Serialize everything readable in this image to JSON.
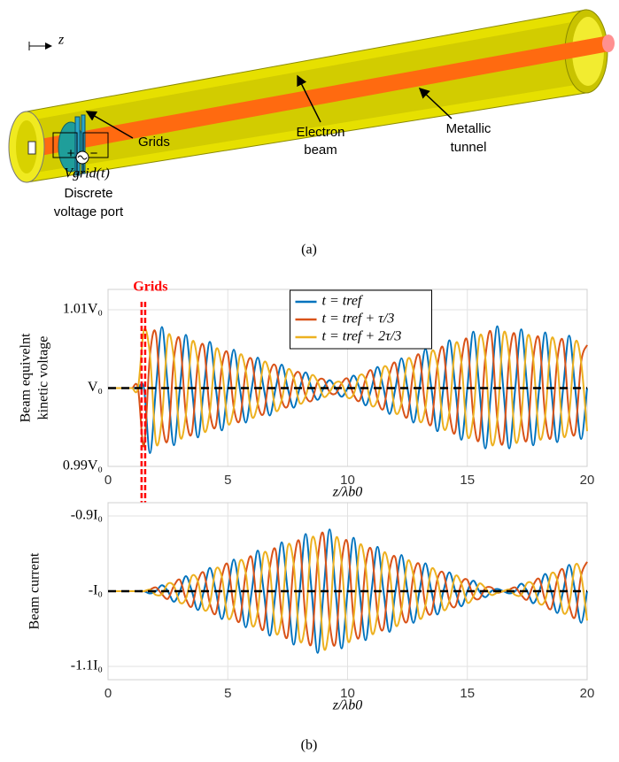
{
  "diagram": {
    "axis_label": "z",
    "grids": "Grids",
    "beam": [
      "Electron",
      "beam"
    ],
    "tunnel": [
      "Metallic",
      "tunnel"
    ],
    "polarity": [
      "+",
      "−"
    ],
    "voltage": "Vgrid(t)",
    "port": [
      "Discrete",
      "voltage port"
    ],
    "caption": "(a)"
  },
  "caption_b": "(b)",
  "chart_data": [
    {
      "type": "line",
      "ylabel": [
        "Beam equivelnt",
        "kinetic voltage"
      ],
      "xlabel": "z/λb0",
      "annotation": "Grids",
      "xlim": [
        0,
        20
      ],
      "xticks": [
        0,
        5,
        10,
        15,
        20
      ],
      "ylim": [
        0.99,
        1.0126
      ],
      "yticks": [
        {
          "value": 1.01,
          "label": "1.01V₀"
        },
        {
          "value": 1,
          "label": "V₀"
        },
        {
          "value": 0.99,
          "label": "0.99V₀"
        }
      ],
      "grid": true,
      "legend": "top",
      "hline": 1,
      "markers_x": [
        1.4,
        1.55
      ],
      "marker_color": "#ff0000",
      "x": [
        0,
        0.25,
        0.5,
        0.75,
        1,
        1.25,
        1.5,
        1.75,
        2,
        2.25,
        2.5,
        2.75,
        3,
        3.25,
        3.5,
        3.75,
        4,
        4.25,
        4.5,
        4.75,
        5,
        5.25,
        5.5,
        5.75,
        6,
        6.25,
        6.5,
        6.75,
        7,
        7.25,
        7.5,
        7.75,
        8,
        8.25,
        8.5,
        8.75,
        9,
        9.25,
        9.5,
        9.75,
        10,
        10.25,
        10.5,
        10.75,
        11,
        11.25,
        11.5,
        11.75,
        12,
        12.25,
        12.5,
        12.75,
        13,
        13.25,
        13.5,
        13.75,
        14,
        14.25,
        14.5,
        14.75,
        15,
        15.25,
        15.5,
        15.75,
        16,
        16.25,
        16.5,
        16.75,
        17,
        17.25,
        17.5,
        17.75,
        18,
        18.25,
        18.5,
        18.75,
        19,
        19.25,
        19.5,
        19.75,
        20
      ],
      "series": [
        {
          "name": "t = tref",
          "color": "#0072bd",
          "values": [
            1,
            1,
            1,
            1,
            1,
            1,
            1,
            0.9917,
            1,
            1.0078,
            1,
            0.9927,
            1,
            1.0068,
            1,
            0.9937,
            1,
            1.0059,
            1,
            0.9946,
            1,
            1.0049,
            1,
            0.9956,
            1,
            1.0039,
            1,
            0.9965,
            1,
            1.003,
            1,
            0.9975,
            1,
            1.002,
            1,
            0.9985,
            1,
            1.001,
            1,
            0.9989,
            1,
            1.0016,
            1,
            0.9978,
            1,
            1.0027,
            1,
            0.9967,
            1,
            1.0038,
            1,
            0.9956,
            1,
            1.005,
            1,
            0.9945,
            1,
            1.0061,
            1,
            0.9934,
            1,
            1.0072,
            1,
            0.9923,
            1,
            1.0079,
            1,
            0.9923,
            1,
            1.0075,
            1,
            0.9927,
            1,
            1.0071,
            1,
            0.9931,
            1,
            1.0067,
            1,
            0.9935,
            1
          ]
        },
        {
          "name": "t = tref + τ/3",
          "color": "#d95319",
          "values": [
            1,
            1,
            1,
            1,
            1,
            1,
            0.9926,
            1.0042,
            1.0069,
            0.9961,
            0.9935,
            1.0037,
            1.0061,
            0.9966,
            0.9943,
            1.0032,
            1.0053,
            0.997,
            0.9952,
            1.0027,
            1.0044,
            0.9975,
            0.9959,
            1.0022,
            1.0036,
            0.998,
            0.9968,
            1.0018,
            1.0028,
            0.9985,
            0.9977,
            1.0013,
            1.0019,
            0.999,
            0.9984,
            1.0008,
            1.0011,
            0.9995,
            0.9993,
            1.0006,
            1.0012,
            0.9992,
            0.9984,
            1.0011,
            1.0022,
            0.9986,
            0.9974,
            1.0017,
            1.0031,
            0.9981,
            0.9964,
            1.0022,
            1.0041,
            0.9975,
            0.9955,
            1.0028,
            1.005,
            0.9969,
            0.9945,
            1.0033,
            1.006,
            0.9964,
            0.9936,
            1.0039,
            1.0069,
            0.996,
            0.9932,
            1.0039,
            1.0066,
            0.9962,
            0.9936,
            1.0037,
            1.0062,
            0.9964,
            0.9939,
            1.0035,
            1.0059,
            0.9966,
            0.9943,
            1.0033,
            1.0055
          ]
        },
        {
          "name": "t = tref + 2τ/3",
          "color": "#edb120",
          "values": [
            1,
            1,
            1,
            1,
            1,
            1,
            1.0074,
            1.0042,
            0.9931,
            0.9961,
            1.0065,
            1.0037,
            0.9939,
            0.9966,
            1.0057,
            1.0032,
            0.9947,
            0.997,
            1.0048,
            1.0027,
            0.9956,
            0.9975,
            1.0041,
            1.0022,
            0.9964,
            0.998,
            1.0032,
            1.0018,
            0.9972,
            0.9985,
            1.0023,
            1.0013,
            0.9981,
            0.999,
            1.0016,
            1.0008,
            0.9989,
            0.9995,
            1.0007,
            1.0006,
            0.9988,
            0.9992,
            1.0016,
            1.0011,
            0.9978,
            0.9986,
            1.0026,
            1.0017,
            0.9969,
            0.9981,
            1.0036,
            1.0022,
            0.9959,
            0.9975,
            1.0045,
            1.0028,
            0.995,
            0.9969,
            1.0055,
            1.0033,
            0.994,
            0.9964,
            1.0064,
            1.0039,
            0.9931,
            0.996,
            1.0068,
            1.0039,
            0.9934,
            0.9962,
            1.0064,
            1.0037,
            0.9938,
            0.9964,
            1.0061,
            1.0035,
            0.9941,
            0.9966,
            1.0057,
            1.0033,
            0.9945
          ]
        }
      ]
    },
    {
      "type": "line",
      "ylabel": [
        "Beam current"
      ],
      "xlabel": "z/λb0",
      "xlim": [
        0,
        20
      ],
      "xticks": [
        0,
        5,
        10,
        15,
        20
      ],
      "ylim": [
        -1.1176,
        -0.8824
      ],
      "yticks": [
        {
          "value": -0.9,
          "label": "-0.9I₀"
        },
        {
          "value": -1,
          "label": "-I₀"
        },
        {
          "value": -1.1,
          "label": "-1.1I₀"
        }
      ],
      "grid": true,
      "hline": -1,
      "x": [
        0,
        0.25,
        0.5,
        0.75,
        1,
        1.25,
        1.5,
        1.75,
        2,
        2.25,
        2.5,
        2.75,
        3,
        3.25,
        3.5,
        3.75,
        4,
        4.25,
        4.5,
        4.75,
        5,
        5.25,
        5.5,
        5.75,
        6,
        6.25,
        6.5,
        6.75,
        7,
        7.25,
        7.5,
        7.75,
        8,
        8.25,
        8.5,
        8.75,
        9,
        9.25,
        9.5,
        9.75,
        10,
        10.25,
        10.5,
        10.75,
        11,
        11.25,
        11.5,
        11.75,
        12,
        12.25,
        12.5,
        12.75,
        13,
        13.25,
        13.5,
        13.75,
        14,
        14.25,
        14.5,
        14.75,
        15,
        15.25,
        15.5,
        15.75,
        16,
        16.25,
        16.5,
        16.75,
        17,
        17.25,
        17.5,
        17.75,
        18,
        18.25,
        18.5,
        18.75,
        19,
        19.25,
        19.5,
        19.75,
        20
      ],
      "series": [
        {
          "name": "t = tref",
          "color": "#0072bd",
          "values": [
            -1,
            -1,
            -1,
            -1,
            -1,
            -1,
            -1,
            -1.003,
            -1,
            -0.992,
            -1,
            -1.014,
            -1,
            -0.98,
            -1,
            -1.025,
            -1,
            -0.969,
            -1,
            -1.037,
            -1,
            -0.958,
            -1,
            -1.048,
            -1,
            -0.946,
            -1,
            -1.059,
            -1,
            -0.935,
            -1,
            -1.071,
            -1,
            -0.924,
            -1,
            -1.082,
            -1,
            -0.918,
            -1,
            -1.076,
            -1,
            -0.929,
            -1,
            -1.065,
            -1,
            -0.941,
            -1,
            -1.054,
            -1,
            -0.952,
            -1,
            -1.042,
            -1,
            -0.963,
            -1,
            -1.031,
            -1,
            -0.975,
            -1,
            -1.02,
            -1,
            -0.986,
            -1,
            -1.008,
            -1,
            -0.997,
            -1,
            -1.003,
            -1,
            -0.99,
            -1,
            -1.016,
            -1,
            -0.977,
            -1,
            -1.029,
            -1,
            -0.965,
            -1,
            -1.042,
            -1
          ]
        },
        {
          "name": "t = tref + τ/3",
          "color": "#d95319",
          "values": [
            -1,
            -1,
            -1,
            -1,
            -1,
            -1,
            -1,
            -0.998,
            -0.995,
            -1.004,
            -1.01,
            -0.993,
            -0.985,
            -1.01,
            -1.02,
            -0.987,
            -0.976,
            -1.016,
            -1.029,
            -0.981,
            -0.965,
            -1.021,
            -1.039,
            -0.976,
            -0.956,
            -1.027,
            -1.049,
            -0.97,
            -0.946,
            -1.033,
            -1.059,
            -0.964,
            -0.936,
            -1.038,
            -1.068,
            -0.959,
            -0.926,
            -1.041,
            -1.068,
            -0.962,
            -0.936,
            -1.036,
            -1.059,
            -0.967,
            -0.946,
            -1.03,
            -1.049,
            -0.973,
            -0.956,
            -1.024,
            -1.039,
            -0.979,
            -0.965,
            -1.019,
            -1.029,
            -0.984,
            -0.976,
            -1.013,
            -1.02,
            -0.99,
            -0.985,
            -1.007,
            -1.01,
            -0.996,
            -0.995,
            -1.002,
            -1,
            -0.998,
            -0.995,
            -1.005,
            -1.011,
            -0.992,
            -0.984,
            -1.012,
            -1.023,
            -0.985,
            -0.972,
            -1.018,
            -1.034,
            -0.979,
            -0.961
          ]
        },
        {
          "name": "t = tref + 2τ/3",
          "color": "#edb120",
          "values": [
            -1,
            -1,
            -1,
            -1,
            -1,
            -1,
            -1,
            -0.998,
            -1.005,
            -1.004,
            -0.99,
            -0.993,
            -1.015,
            -1.01,
            -0.98,
            -0.987,
            -1.024,
            -1.016,
            -0.971,
            -0.981,
            -1.035,
            -1.021,
            -0.961,
            -0.976,
            -1.044,
            -1.027,
            -0.951,
            -0.97,
            -1.054,
            -1.033,
            -0.941,
            -0.964,
            -1.064,
            -1.038,
            -0.932,
            -0.959,
            -1.074,
            -1.041,
            -0.932,
            -0.962,
            -1.064,
            -1.036,
            -0.941,
            -0.967,
            -1.054,
            -1.03,
            -0.951,
            -0.973,
            -1.044,
            -1.024,
            -0.961,
            -0.979,
            -1.035,
            -1.019,
            -0.971,
            -0.984,
            -1.024,
            -1.013,
            -0.98,
            -0.99,
            -1.015,
            -1.007,
            -0.99,
            -0.996,
            -1.005,
            -1.002,
            -1,
            -0.998,
            -1.005,
            -1.005,
            -0.989,
            -0.992,
            -1.016,
            -1.012,
            -0.977,
            -0.985,
            -1.028,
            -1.018,
            -0.966,
            -0.979,
            -1.039
          ]
        }
      ]
    }
  ]
}
